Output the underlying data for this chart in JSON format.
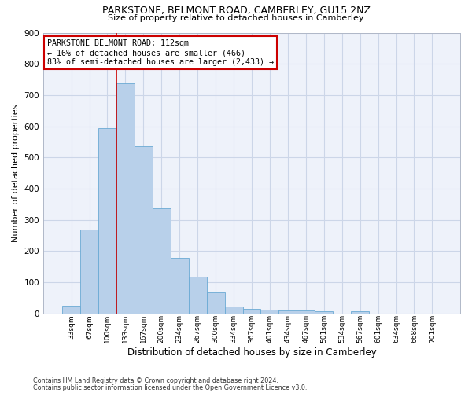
{
  "title1": "PARKSTONE, BELMONT ROAD, CAMBERLEY, GU15 2NZ",
  "title2": "Size of property relative to detached houses in Camberley",
  "xlabel": "Distribution of detached houses by size in Camberley",
  "ylabel": "Number of detached properties",
  "categories": [
    "33sqm",
    "67sqm",
    "100sqm",
    "133sqm",
    "167sqm",
    "200sqm",
    "234sqm",
    "267sqm",
    "300sqm",
    "334sqm",
    "367sqm",
    "401sqm",
    "434sqm",
    "467sqm",
    "501sqm",
    "534sqm",
    "567sqm",
    "601sqm",
    "634sqm",
    "668sqm",
    "701sqm"
  ],
  "values": [
    25,
    270,
    595,
    737,
    535,
    338,
    178,
    118,
    68,
    22,
    15,
    12,
    10,
    9,
    8,
    0,
    7,
    0,
    0,
    0,
    0
  ],
  "bar_color": "#b8d0ea",
  "bar_edge_color": "#6aaad4",
  "grid_color": "#ccd6e8",
  "bg_color": "#eef2fa",
  "vline_color": "#cc0000",
  "annotation_text": "PARKSTONE BELMONT ROAD: 112sqm\n← 16% of detached houses are smaller (466)\n83% of semi-detached houses are larger (2,433) →",
  "annotation_box_color": "#ffffff",
  "annotation_box_edgecolor": "#cc0000",
  "footnote1": "Contains HM Land Registry data © Crown copyright and database right 2024.",
  "footnote2": "Contains public sector information licensed under the Open Government Licence v3.0.",
  "ylim": [
    0,
    900
  ],
  "yticks": [
    0,
    100,
    200,
    300,
    400,
    500,
    600,
    700,
    800,
    900
  ]
}
